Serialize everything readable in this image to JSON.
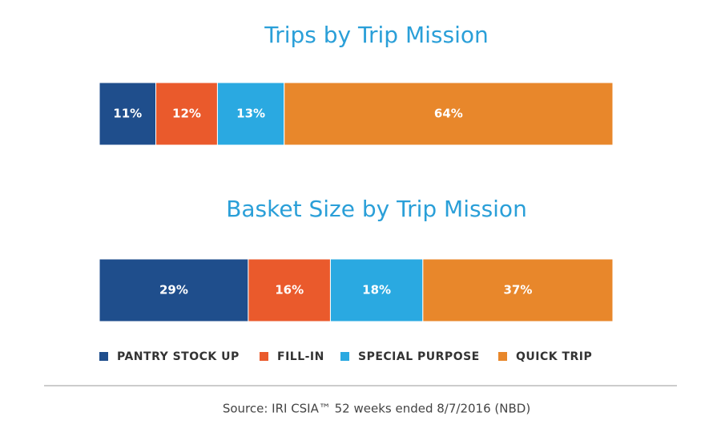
{
  "chart_data": {
    "type": "bar",
    "orientation": "horizontal",
    "stacked": true,
    "categories": [
      "Trips by Trip Mission",
      "Basket Size by Trip Mission"
    ],
    "series": [
      {
        "name": "PANTRY STOCK UP",
        "color": "#1f4e8c",
        "values": [
          11,
          29
        ],
        "value_labels": [
          "11%",
          "29%"
        ]
      },
      {
        "name": "FILL-IN",
        "color": "#ea5a2c",
        "values": [
          12,
          16
        ],
        "value_labels": [
          "12%",
          "16%"
        ]
      },
      {
        "name": "SPECIAL PURPOSE",
        "color": "#2aa9e1",
        "values": [
          13,
          18
        ],
        "value_labels": [
          "13%",
          "18%"
        ]
      },
      {
        "name": "QUICK TRIP",
        "color": "#e8872b",
        "values": [
          64,
          37
        ],
        "value_labels": [
          "64%",
          "37%"
        ]
      }
    ],
    "xlim": [
      0,
      100
    ]
  },
  "source": "Source: IRI CSIA™ 52 weeks ended 8/7/2016 (NBD)"
}
